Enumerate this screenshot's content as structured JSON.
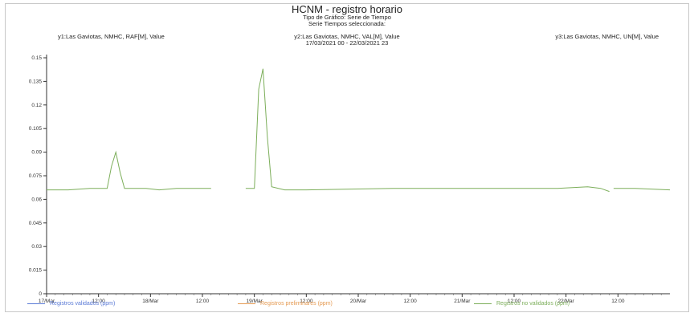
{
  "header": {
    "title": "HCNM - registro horario",
    "subtitle_1": "Tipo de Gráfico: Serie de Tiempo",
    "subtitle_2": "Serie Tiempos seleccionada:",
    "date_range": "17/03/2021 00 - 22/03/2021 23"
  },
  "series_headers": {
    "y1": "y1:Las Gaviotas, NMHC, RAF[M], Value",
    "y2": "y2:Las Gaviotas, NMHC, VAL[M], Value",
    "y3": "y3:Las Gaviotas, NMHC, UN[M], Value"
  },
  "legend": [
    {
      "label": "Registros validados (ppm)",
      "detail": "",
      "color": "#5a7ad6"
    },
    {
      "label": "Registros preliminares (ppm)",
      "detail": "",
      "color": "#e59a52"
    },
    {
      "label": "Registros no validados (ppm)",
      "detail": "",
      "color": "#7cae5a"
    }
  ],
  "chart_data": {
    "type": "line",
    "ylim": [
      0,
      0.15
    ],
    "yticks": [
      "0",
      "0.015",
      "0.03",
      "0.045",
      "0.06",
      "0.075",
      "0.09",
      "0.105",
      "0.12",
      "0.135",
      "0.15"
    ],
    "xticks": [
      "17/Mar",
      "12:00",
      "18/Mar",
      "12:00",
      "19/Mar",
      "12:00",
      "20/Mar",
      "12:00",
      "21/Mar",
      "12:00",
      "22/Mar",
      "12:00"
    ],
    "x_hours_start": 0,
    "x_hours_end": 144,
    "series": [
      {
        "color": "#7cae5a",
        "segments": [
          [
            [
              0,
              0.066
            ],
            [
              5,
              0.066
            ],
            [
              10,
              0.067
            ],
            [
              14,
              0.067
            ],
            [
              15,
              0.081
            ],
            [
              16,
              0.09
            ],
            [
              17,
              0.077
            ],
            [
              18,
              0.067
            ],
            [
              23,
              0.067
            ],
            [
              26,
              0.066
            ],
            [
              30,
              0.067
            ],
            [
              36,
              0.067
            ],
            [
              38,
              0.067
            ]
          ],
          [
            [
              46,
              0.067
            ],
            [
              48,
              0.067
            ],
            [
              49,
              0.13
            ],
            [
              50,
              0.143
            ],
            [
              51,
              0.1
            ],
            [
              52,
              0.068
            ],
            [
              55,
              0.066
            ],
            [
              60,
              0.066
            ],
            [
              80,
              0.067
            ],
            [
              100,
              0.067
            ],
            [
              118,
              0.067
            ],
            [
              125,
              0.068
            ],
            [
              128,
              0.067
            ],
            [
              130,
              0.065
            ]
          ],
          [
            [
              131,
              0.067
            ],
            [
              136,
              0.067
            ],
            [
              144,
              0.066
            ]
          ]
        ]
      }
    ]
  }
}
